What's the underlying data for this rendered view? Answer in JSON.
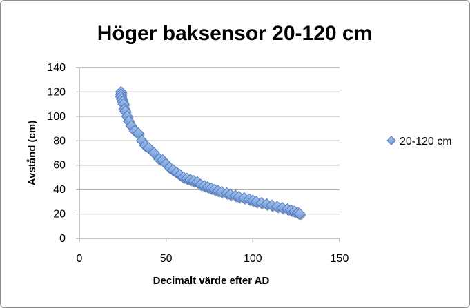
{
  "chart_data": {
    "type": "scatter",
    "title": "Höger baksensor 20-120 cm",
    "xlabel": "Decimalt värde efter AD",
    "ylabel": "Avstånd (cm)",
    "xlim": [
      0,
      150
    ],
    "ylim": [
      0,
      140
    ],
    "xticks": [
      "0",
      "50",
      "100",
      "150"
    ],
    "yticks": [
      "0",
      "20",
      "40",
      "60",
      "80",
      "100",
      "120",
      "140"
    ],
    "grid": "horizontal",
    "legend": "right",
    "marker": "diamond",
    "series": [
      {
        "name": "20-120 cm",
        "color": "#6a93d4",
        "points": [
          [
            24,
            120
          ],
          [
            24,
            118
          ],
          [
            24,
            116
          ],
          [
            24.5,
            114
          ],
          [
            25,
            112
          ],
          [
            25.5,
            110
          ],
          [
            26,
            106
          ],
          [
            26.5,
            104
          ],
          [
            27.5,
            100
          ],
          [
            28.5,
            96
          ],
          [
            30,
            92
          ],
          [
            32,
            88
          ],
          [
            34,
            86
          ],
          [
            36,
            80
          ],
          [
            38,
            76
          ],
          [
            40,
            74
          ],
          [
            43,
            70
          ],
          [
            46,
            65
          ],
          [
            48,
            64
          ],
          [
            50,
            61
          ],
          [
            52,
            58
          ],
          [
            54,
            56
          ],
          [
            56,
            54
          ],
          [
            58,
            52
          ],
          [
            60,
            50
          ],
          [
            62,
            49
          ],
          [
            64,
            48
          ],
          [
            66,
            47
          ],
          [
            68,
            46
          ],
          [
            70,
            44
          ],
          [
            72,
            43
          ],
          [
            74,
            42
          ],
          [
            76,
            41
          ],
          [
            78,
            40
          ],
          [
            80,
            39
          ],
          [
            82,
            38
          ],
          [
            85,
            37
          ],
          [
            87,
            36
          ],
          [
            90,
            35
          ],
          [
            92,
            34
          ],
          [
            95,
            33
          ],
          [
            98,
            32
          ],
          [
            100,
            31
          ],
          [
            102,
            30
          ],
          [
            105,
            29
          ],
          [
            108,
            28
          ],
          [
            111,
            27
          ],
          [
            114,
            26
          ],
          [
            117,
            25
          ],
          [
            120,
            24
          ],
          [
            122,
            23
          ],
          [
            124,
            22
          ],
          [
            126,
            21
          ],
          [
            127,
            20
          ]
        ]
      }
    ]
  }
}
